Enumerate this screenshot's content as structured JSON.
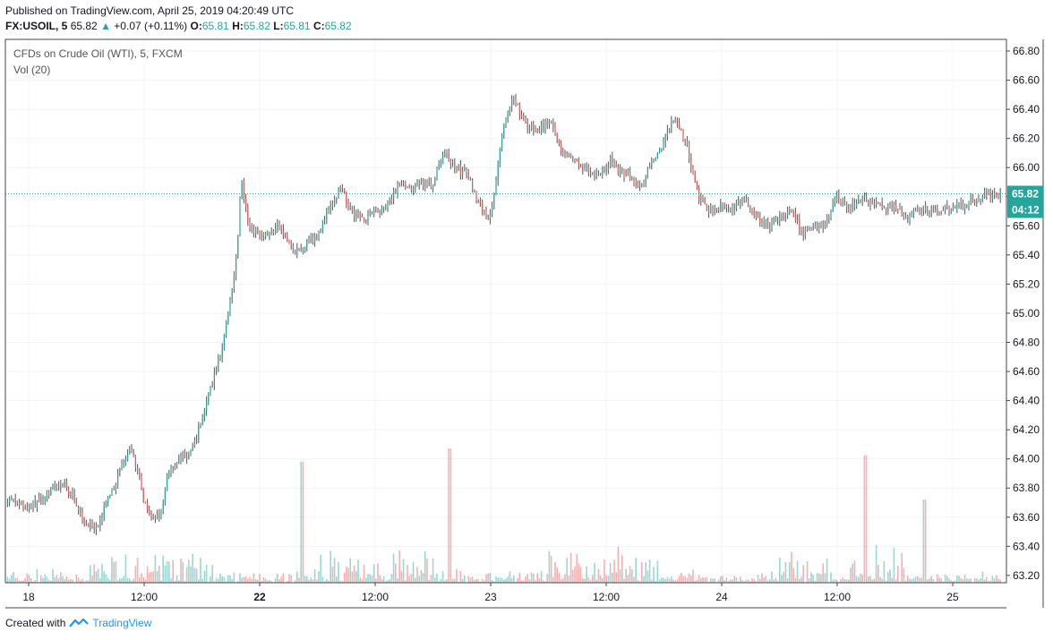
{
  "header": {
    "published": "Published on TradingView.com, April 25, 2019 04:20:49 UTC",
    "symbol": "FX:USOIL, 5",
    "last": "65.82",
    "change": "+0.07 (+0.11%)",
    "o_label": "O:",
    "o_value": "65.81",
    "h_label": "H:",
    "h_value": "65.82",
    "l_label": "L:",
    "l_value": "65.81",
    "c_label": "C:",
    "c_value": "65.82"
  },
  "legend": {
    "title": "CFDs on Crude Oil (WTI), 5, FXCM",
    "volume": "Vol (20)"
  },
  "footer": {
    "created_with": "Created with",
    "brand": "TradingView"
  },
  "colors": {
    "up": "#26a69a",
    "down": "#ef5350",
    "wick": "#555555",
    "grid": "#f0f3fa",
    "price_line": "#26a69a"
  },
  "chart_data": {
    "type": "line",
    "title": "CFDs on Crude Oil (WTI), 5, FXCM",
    "ylim": [
      63.15,
      66.88
    ],
    "y_ticks": [
      "63.20",
      "63.40",
      "63.60",
      "63.80",
      "64.00",
      "64.20",
      "64.40",
      "64.60",
      "64.80",
      "65.00",
      "65.20",
      "65.40",
      "65.60",
      "65.80",
      "66.00",
      "66.20",
      "66.40",
      "66.60",
      "66.80"
    ],
    "x_ticks": [
      {
        "label": "18",
        "at": 0.0,
        "bold": false
      },
      {
        "label": "12:00",
        "at": 0.5,
        "bold": false
      },
      {
        "label": "22",
        "at": 1.0,
        "bold": true
      },
      {
        "label": "12:00",
        "at": 1.5,
        "bold": false
      },
      {
        "label": "23",
        "at": 2.0,
        "bold": false
      },
      {
        "label": "12:00",
        "at": 2.5,
        "bold": false
      },
      {
        "label": "24",
        "at": 3.0,
        "bold": false
      },
      {
        "label": "12:00",
        "at": 3.5,
        "bold": false
      },
      {
        "label": "25",
        "at": 4.0,
        "bold": false
      }
    ],
    "x_range": [
      -0.1,
      4.21
    ],
    "last_price": "65.82",
    "last_price_value": 65.82,
    "countdown": "04:12",
    "series": [
      {
        "kind": "price",
        "x": [
          -0.1,
          -0.05,
          0.0,
          0.05,
          0.1,
          0.15,
          0.2,
          0.25,
          0.3,
          0.33,
          0.35,
          0.4,
          0.45,
          0.48,
          0.5,
          0.55,
          0.58,
          0.6,
          0.65,
          0.7,
          0.75,
          0.8,
          0.85,
          0.9,
          0.92,
          0.95,
          1.0,
          1.05,
          1.08,
          1.1,
          1.12,
          1.15,
          1.2,
          1.25,
          1.3,
          1.35,
          1.4,
          1.45,
          1.5,
          1.55,
          1.6,
          1.65,
          1.7,
          1.75,
          1.8,
          1.85,
          1.9,
          1.95,
          2.0,
          2.05,
          2.1,
          2.15,
          2.2,
          2.25,
          2.3,
          2.35,
          2.4,
          2.45,
          2.5,
          2.52,
          2.55,
          2.6,
          2.65,
          2.7,
          2.75,
          2.8,
          2.85,
          2.9,
          2.95,
          3.0,
          3.05,
          3.1,
          3.15,
          3.2,
          3.25,
          3.3,
          3.35,
          3.4,
          3.45,
          3.5,
          3.52,
          3.55,
          3.6,
          3.65,
          3.7,
          3.75,
          3.8,
          3.85,
          3.9,
          3.95,
          4.0,
          4.05,
          4.1,
          4.15,
          4.2
        ],
        "values": [
          63.72,
          63.7,
          63.67,
          63.72,
          63.78,
          63.83,
          63.72,
          63.55,
          63.5,
          63.7,
          63.72,
          63.95,
          64.05,
          63.85,
          63.7,
          63.58,
          63.65,
          63.9,
          64.0,
          64.02,
          64.28,
          64.55,
          64.85,
          65.4,
          65.92,
          65.6,
          65.55,
          65.55,
          65.6,
          65.55,
          65.5,
          65.4,
          65.48,
          65.55,
          65.7,
          65.85,
          65.7,
          65.65,
          65.7,
          65.72,
          65.88,
          65.85,
          65.88,
          65.9,
          66.1,
          66.0,
          65.95,
          65.75,
          65.65,
          66.25,
          66.48,
          66.3,
          66.25,
          66.32,
          66.15,
          66.05,
          66.0,
          65.95,
          66.0,
          66.05,
          65.98,
          65.95,
          65.85,
          66.05,
          66.18,
          66.35,
          66.15,
          65.8,
          65.7,
          65.75,
          65.72,
          65.78,
          65.65,
          65.6,
          65.65,
          65.7,
          65.55,
          65.6,
          65.62,
          65.82,
          65.75,
          65.72,
          65.78,
          65.75,
          65.72,
          65.75,
          65.65,
          65.7,
          65.72,
          65.7,
          65.72,
          65.75,
          65.78,
          65.82,
          65.82
        ]
      }
    ],
    "volume_spikes": [
      {
        "x": 1.18,
        "value": 0.9
      },
      {
        "x": 1.82,
        "value": 1.0
      },
      {
        "x": 3.62,
        "value": 0.95
      },
      {
        "x": 3.88,
        "value": 0.62
      }
    ]
  }
}
